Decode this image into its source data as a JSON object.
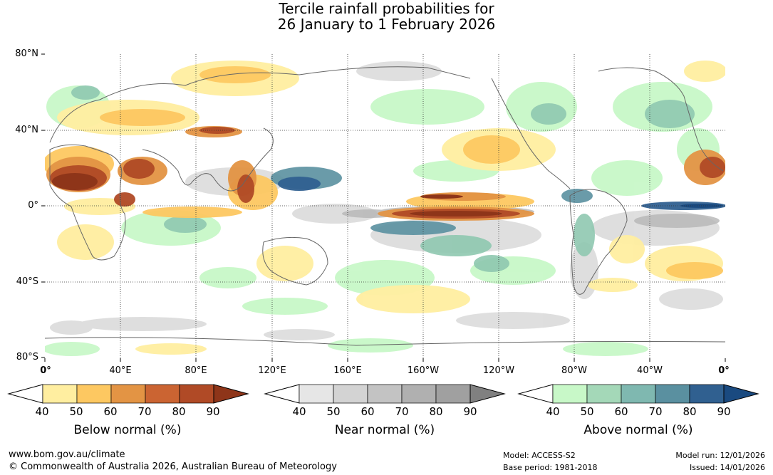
{
  "title_line1": "Tercile rainfall probabilities for",
  "title_line2": "26 January to 1 February 2026",
  "latitudes": [
    "80°N",
    "40°N",
    "0°",
    "40°S",
    "80°S"
  ],
  "longitudes": [
    "0°",
    "40°E",
    "80°E",
    "120°E",
    "160°E",
    "160°W",
    "120°W",
    "80°W",
    "40°W",
    "0°"
  ],
  "legends": [
    {
      "label": "Below normal (%)",
      "ticks": [
        "40",
        "50",
        "60",
        "70",
        "80",
        "90"
      ],
      "colors": [
        "#ffeea0",
        "#fdc861",
        "#e39444",
        "#cb6432",
        "#b04a26",
        "#8e3519"
      ]
    },
    {
      "label": "Near normal (%)",
      "ticks": [
        "40",
        "50",
        "60",
        "70",
        "80",
        "90"
      ],
      "colors": [
        "#e6e6e6",
        "#d3d3d3",
        "#c3c3c3",
        "#b0b0b0",
        "#a0a0a0",
        "#808080"
      ]
    },
    {
      "label": "Above normal (%)",
      "ticks": [
        "40",
        "50",
        "60",
        "70",
        "80",
        "90"
      ],
      "colors": [
        "#c8f8c8",
        "#a4d8b8",
        "#7fb8b0",
        "#5a90a0",
        "#306090",
        "#1a4a80"
      ]
    }
  ],
  "footer": {
    "url": "www.bom.gov.au/climate",
    "copyright": "© Commonwealth of Australia 2026, Australian Bureau of Meteorology",
    "model": "Model: ACCESS-S2",
    "base_period": "Base period: 1981-2018",
    "model_run": "Model run: 12/01/2026",
    "issued": "Issued: 14/01/2026"
  }
}
